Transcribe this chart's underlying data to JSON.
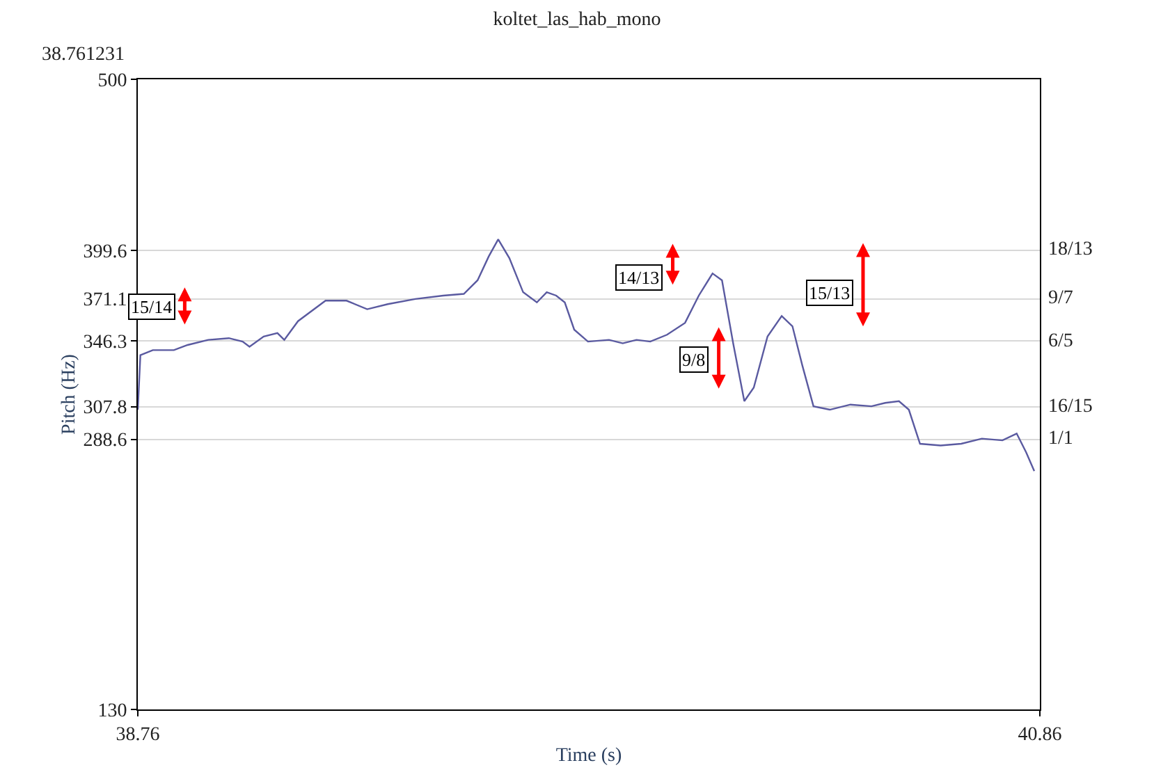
{
  "chart_data": {
    "type": "line",
    "title": "koltet_las_hab_mono",
    "xlabel": "Time (s)",
    "ylabel": "Pitch (Hz)",
    "x": [
      38.76,
      38.766,
      38.795,
      38.844,
      38.876,
      38.924,
      38.972,
      39.004,
      39.02,
      39.053,
      39.085,
      39.101,
      39.133,
      39.197,
      39.246,
      39.294,
      39.342,
      39.406,
      39.471,
      39.519,
      39.551,
      39.577,
      39.599,
      39.625,
      39.657,
      39.689,
      39.712,
      39.734,
      39.754,
      39.776,
      39.808,
      39.857,
      39.889,
      39.921,
      39.953,
      39.992,
      40.034,
      40.066,
      40.098,
      40.12,
      40.146,
      40.172,
      40.194,
      40.226,
      40.259,
      40.284,
      40.307,
      40.333,
      40.371,
      40.419,
      40.468,
      40.5,
      40.532,
      40.555,
      40.581,
      40.629,
      40.677,
      40.725,
      40.773,
      40.806,
      40.828,
      40.847
    ],
    "series": [
      {
        "color": "#5a5aa0",
        "values": [
          306,
          338,
          341,
          341,
          344,
          347,
          348,
          346,
          343,
          349,
          351,
          347,
          358,
          370,
          370,
          365,
          368,
          371,
          373,
          374,
          382,
          396,
          406,
          395,
          375,
          369,
          375,
          373,
          369,
          353,
          346,
          347,
          345,
          347,
          346,
          350,
          357,
          373,
          386,
          382,
          345,
          311,
          319,
          349,
          361,
          355,
          332,
          308,
          306,
          309,
          308,
          310,
          311,
          306,
          286,
          285,
          286,
          289,
          288,
          292,
          281,
          270
        ]
      }
    ],
    "xlim": [
      38.76,
      40.86
    ],
    "xticks": [
      38.76,
      40.86
    ],
    "ylim": [
      130,
      500
    ],
    "yticks": [
      130,
      288.6,
      307.8,
      346.3,
      371.1,
      399.6,
      500
    ],
    "grid": "y",
    "annotations": [
      "38.761231",
      "15/14",
      "14/13",
      "9/8",
      "15/13",
      "18/13",
      "9/7",
      "6/5",
      "16/15",
      "1/1"
    ]
  }
}
